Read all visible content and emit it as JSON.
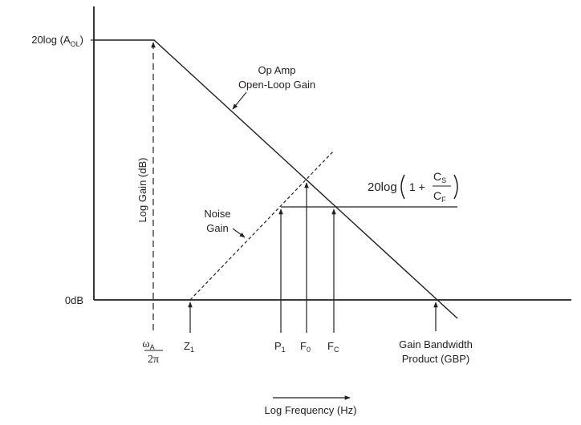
{
  "y_axis": {
    "title": "Log Gain (dB)",
    "level_high": {
      "main": "20log (A",
      "sub": "OL",
      "close": ")"
    },
    "level_zero": "0dB"
  },
  "x_axis": {
    "title": "Log Frequency (Hz)"
  },
  "curves": {
    "open_loop": {
      "line1": "Op Amp",
      "line2": "Open-Loop Gain"
    },
    "noise_gain": {
      "line1": "Noise",
      "line2": "Gain"
    },
    "plateau_formula": {
      "prefix": "20log",
      "one_plus": "1 +",
      "num_main": "C",
      "num_sub": "S",
      "den_main": "C",
      "den_sub": "F"
    }
  },
  "markers": {
    "omega_a": {
      "num_main": "ω",
      "num_sub": "A",
      "den": "2π"
    },
    "z1": {
      "main": "Z",
      "sub": "1"
    },
    "p1": {
      "main": "P",
      "sub": "1"
    },
    "f0": {
      "main": "F",
      "sub": "0"
    },
    "fc": {
      "main": "F",
      "sub": "C"
    },
    "gbp": {
      "line1": "Gain Bandwidth",
      "line2": "Product (GBP)"
    }
  },
  "colors": {
    "ink": "#231f20",
    "background": "#ffffff"
  }
}
